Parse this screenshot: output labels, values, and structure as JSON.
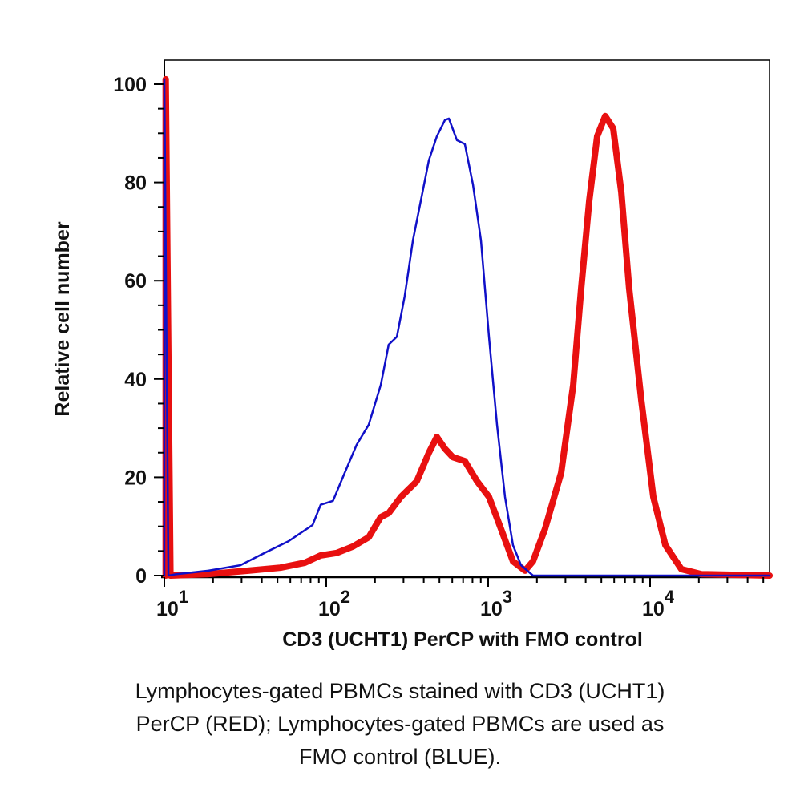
{
  "chart_data": {
    "type": "line",
    "xlabel": "CD3 (UCHT1) PerCP with FMO control",
    "ylabel": "Relative cell number",
    "x_scale": "log",
    "xlim": [
      10,
      55000
    ],
    "ylim": [
      0,
      100
    ],
    "x_ticks": [
      {
        "base": "10",
        "exp": "1",
        "value": 10
      },
      {
        "base": "10",
        "exp": "2",
        "value": 100
      },
      {
        "base": "10",
        "exp": "3",
        "value": 1000
      },
      {
        "base": "10",
        "exp": "4",
        "value": 10000
      }
    ],
    "y_ticks": [
      "0",
      "20",
      "40",
      "60",
      "80",
      "100"
    ],
    "grid": false,
    "series": [
      {
        "color": "#1010c8",
        "points": [
          [
            10,
            0
          ],
          [
            10,
            101
          ],
          [
            10.6,
            0
          ],
          [
            11.9,
            0.3
          ],
          [
            18.7,
            1
          ],
          [
            29.5,
            2.1
          ],
          [
            41.6,
            4.6
          ],
          [
            58.5,
            7.0
          ],
          [
            82.4,
            10.3
          ],
          [
            92.3,
            14.4
          ],
          [
            110,
            15.2
          ],
          [
            130,
            20.9
          ],
          [
            154,
            26.6
          ],
          [
            183,
            30.7
          ],
          [
            217,
            38.8
          ],
          [
            243,
            47
          ],
          [
            273,
            48.6
          ],
          [
            305,
            56.8
          ],
          [
            343,
            68.2
          ],
          [
            384,
            76.3
          ],
          [
            430,
            84.5
          ],
          [
            482,
            89.4
          ],
          [
            541,
            92.7
          ],
          [
            572,
            93
          ],
          [
            641,
            88.6
          ],
          [
            718,
            87.8
          ],
          [
            805,
            79.6
          ],
          [
            902,
            68.2
          ],
          [
            1012,
            48.6
          ],
          [
            1133,
            30.7
          ],
          [
            1270,
            16.0
          ],
          [
            1422,
            6.2
          ],
          [
            1596,
            2.1
          ],
          [
            1892,
            0
          ],
          [
            54700,
            0
          ]
        ]
      },
      {
        "color": "#e81010",
        "points": [
          [
            10.2,
            0
          ],
          [
            10.2,
            101
          ],
          [
            10.9,
            0
          ],
          [
            18.7,
            0.3
          ],
          [
            33,
            1
          ],
          [
            52,
            1.6
          ],
          [
            73.5,
            2.6
          ],
          [
            92.3,
            4.1
          ],
          [
            116,
            4.6
          ],
          [
            146,
            5.9
          ],
          [
            183,
            7.8
          ],
          [
            217,
            11.9
          ],
          [
            243,
            12.7
          ],
          [
            289,
            16
          ],
          [
            362,
            19.2
          ],
          [
            430,
            25
          ],
          [
            482,
            28.2
          ],
          [
            541,
            25.8
          ],
          [
            605,
            24.1
          ],
          [
            718,
            23.3
          ],
          [
            853,
            19.2
          ],
          [
            1012,
            16
          ],
          [
            1200,
            9.5
          ],
          [
            1422,
            2.9
          ],
          [
            1690,
            1
          ],
          [
            1892,
            2.9
          ],
          [
            2244,
            9.5
          ],
          [
            2820,
            20.9
          ],
          [
            3350,
            38.8
          ],
          [
            3750,
            58.4
          ],
          [
            4210,
            76.3
          ],
          [
            4710,
            89.4
          ],
          [
            5280,
            93.5
          ],
          [
            5920,
            91
          ],
          [
            6640,
            78
          ],
          [
            7430,
            58.4
          ],
          [
            8830,
            35.6
          ],
          [
            10470,
            16
          ],
          [
            12420,
            6.2
          ],
          [
            15600,
            1.3
          ],
          [
            20750,
            0.3
          ],
          [
            54700,
            0
          ]
        ]
      }
    ]
  },
  "caption": {
    "lines": [
      "Lymphocytes-gated PBMCs stained with CD3 (UCHT1)",
      "PerCP (RED); Lymphocytes-gated PBMCs are used as",
      "FMO control (BLUE)."
    ]
  }
}
